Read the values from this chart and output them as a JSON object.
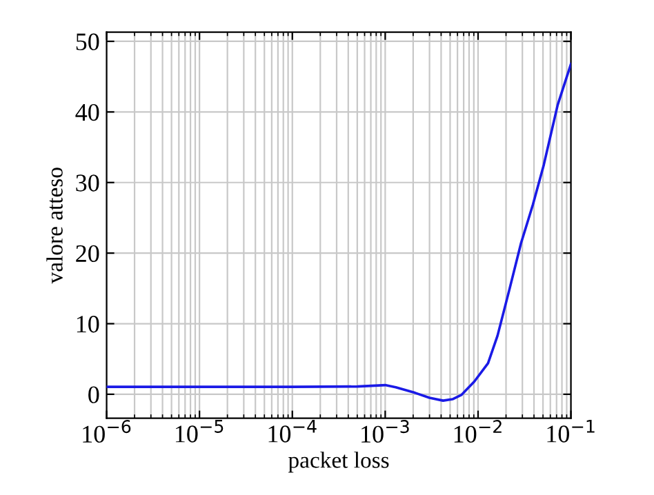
{
  "chart_data": {
    "type": "line",
    "xlabel": "packet loss",
    "ylabel": "valore atteso",
    "log": "x",
    "grid": true,
    "marker": "none",
    "line_style": "solid",
    "xlim": [
      1e-06,
      0.1
    ],
    "ylim": [
      -3.4,
      51.3
    ],
    "xticks": [
      {
        "value": 1e-06,
        "label": "10$^{−6}$"
      },
      {
        "value": 1e-05,
        "label": "10$^{−5}$"
      },
      {
        "value": 0.0001,
        "label": "10$^{−4}$"
      },
      {
        "value": 0.001,
        "label": "10$^{−3}$"
      },
      {
        "value": 0.01,
        "label": "10$^{−2}$"
      },
      {
        "value": 0.1,
        "label": "10$^{−1}$"
      }
    ],
    "yticks": [
      0,
      10,
      20,
      30,
      40,
      50
    ],
    "series": [
      {
        "color": "#1a1ae6",
        "x": [
          1e-06,
          1e-05,
          0.0001,
          0.0005,
          0.001,
          0.0013,
          0.0021,
          0.003,
          0.0042,
          0.0053,
          0.0066,
          0.0091,
          0.0128,
          0.0162,
          0.0218,
          0.029,
          0.039,
          0.051,
          0.072,
          0.1
        ],
        "values": [
          1.05,
          1.05,
          1.05,
          1.1,
          1.3,
          1.0,
          0.2,
          -0.5,
          -0.9,
          -0.7,
          -0.1,
          1.8,
          4.4,
          8.3,
          14.9,
          21.4,
          26.9,
          32.5,
          41,
          46.8
        ]
      }
    ]
  }
}
